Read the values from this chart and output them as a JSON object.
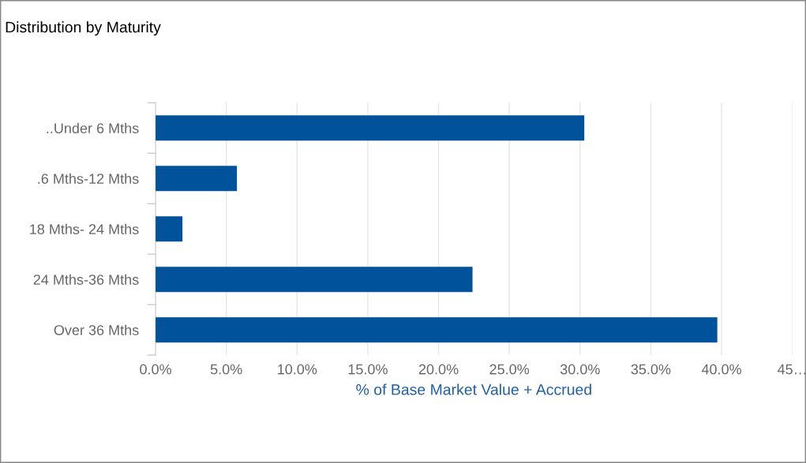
{
  "chart_data": {
    "type": "bar",
    "orientation": "horizontal",
    "title": "Distribution by Maturity",
    "categories": [
      "..Under 6 Mths",
      ".6 Mths-12 Mths",
      "18 Mths- 24 Mths",
      "24 Mths-36 Mths",
      "Over 36 Mths"
    ],
    "values": [
      30.3,
      5.75,
      1.9,
      22.4,
      39.7
    ],
    "color": "#00529b",
    "xlabel": "% of Base Market Value + Accrued",
    "xlim": [
      0,
      45
    ],
    "xticks": [
      {
        "value": 0,
        "label": "0.0%"
      },
      {
        "value": 5,
        "label": "5.0%"
      },
      {
        "value": 10,
        "label": "10.0%"
      },
      {
        "value": 15,
        "label": "15.0%"
      },
      {
        "value": 20,
        "label": "20.0%"
      },
      {
        "value": 25,
        "label": "25.0%"
      },
      {
        "value": 30,
        "label": "30.0%"
      },
      {
        "value": 35,
        "label": "35.0%"
      },
      {
        "value": 40,
        "label": "40.0%"
      },
      {
        "value": 45,
        "label": "45…"
      }
    ],
    "grid": "x"
  }
}
